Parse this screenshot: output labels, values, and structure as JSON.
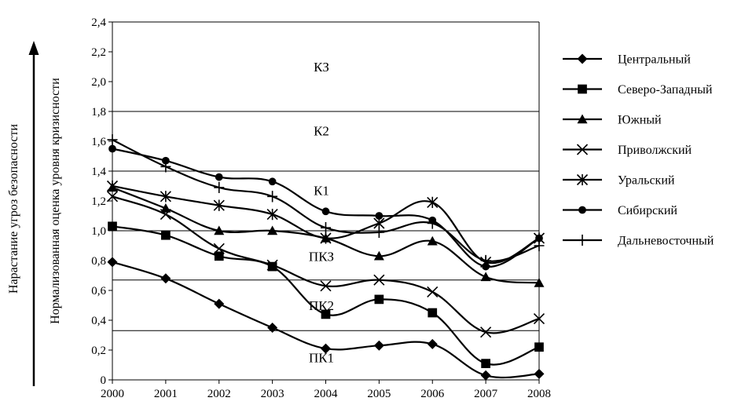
{
  "chart_data": {
    "type": "line",
    "ylabel": "Нормализованная оценка уровня кризисности",
    "arrow_label": "Нарастание угроз безопасности",
    "x": [
      "2000",
      "2001",
      "2002",
      "2003",
      "2004",
      "2005",
      "2006",
      "2007",
      "2008"
    ],
    "ylim": [
      0,
      2.4
    ],
    "yticks": [
      "0",
      "0,2",
      "0,4",
      "0,6",
      "0,8",
      "1,0",
      "1,2",
      "1,4",
      "1,6",
      "1,8",
      "2,0",
      "2,2",
      "2,4"
    ],
    "grid": "horizontal",
    "legend_position": "right",
    "zone_lines": [
      0.33,
      0.67,
      1.0,
      1.4,
      1.8,
      2.4
    ],
    "zones": [
      {
        "label": "КЗ",
        "y": 2.1
      },
      {
        "label": "К2",
        "y": 1.67
      },
      {
        "label": "К1",
        "y": 1.27
      },
      {
        "label": "ПКЗ",
        "y": 0.83
      },
      {
        "label": "ПК2",
        "y": 0.5
      },
      {
        "label": "ПК1",
        "y": 0.15
      }
    ],
    "series": [
      {
        "name": "Центральный",
        "marker": "diamond",
        "values": [
          0.79,
          0.68,
          0.51,
          0.35,
          0.21,
          0.23,
          0.24,
          0.03,
          0.04
        ]
      },
      {
        "name": "Северо-Западный",
        "marker": "square",
        "values": [
          1.03,
          0.97,
          0.83,
          0.76,
          0.44,
          0.54,
          0.45,
          0.11,
          0.22
        ]
      },
      {
        "name": "Южный",
        "marker": "triangle",
        "values": [
          1.29,
          1.15,
          1.0,
          1.0,
          0.95,
          0.83,
          0.93,
          0.69,
          0.65
        ]
      },
      {
        "name": "Приволжский",
        "marker": "x",
        "values": [
          1.23,
          1.11,
          0.88,
          0.77,
          0.63,
          0.67,
          0.59,
          0.32,
          0.41
        ]
      },
      {
        "name": "Уральский",
        "marker": "asterisk",
        "values": [
          1.3,
          1.23,
          1.17,
          1.11,
          0.95,
          1.05,
          1.19,
          0.79,
          0.95
        ]
      },
      {
        "name": "Сибирский",
        "marker": "circle",
        "values": [
          1.55,
          1.47,
          1.36,
          1.33,
          1.13,
          1.1,
          1.07,
          0.76,
          0.95
        ]
      },
      {
        "name": "Дальневосточный",
        "marker": "plus",
        "values": [
          1.61,
          1.43,
          1.29,
          1.23,
          1.02,
          0.99,
          1.05,
          0.8,
          0.9
        ]
      }
    ]
  }
}
